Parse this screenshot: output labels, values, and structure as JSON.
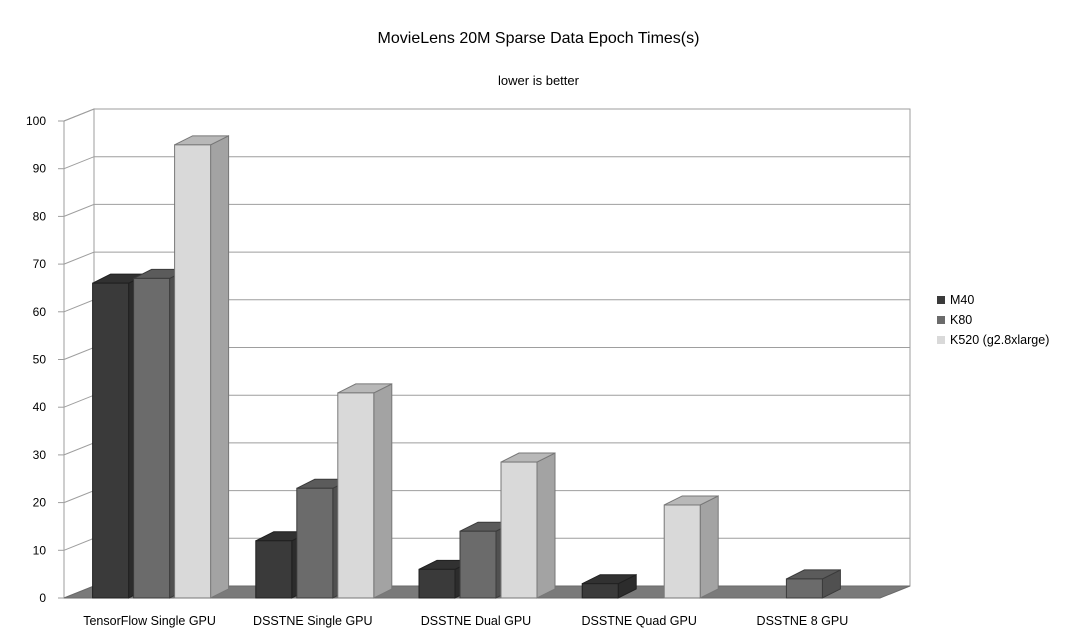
{
  "chart_data": {
    "type": "bar",
    "title": "MovieLens 20M Sparse Data Epoch Times(s)",
    "subtitle": "lower is better",
    "xlabel": "",
    "ylabel": "",
    "ylim": [
      0,
      100
    ],
    "yticks": [
      0,
      10,
      20,
      30,
      40,
      50,
      60,
      70,
      80,
      90,
      100
    ],
    "grid": true,
    "legend_position": "right",
    "categories": [
      "TensorFlow Single GPU",
      "DSSTNE Single GPU",
      "DSSTNE Dual GPU",
      "DSSTNE Quad GPU",
      "DSSTNE 8 GPU"
    ],
    "series": [
      {
        "name": "M40",
        "color": "#3a3a3a",
        "values": [
          66,
          12,
          6,
          3,
          null
        ]
      },
      {
        "name": "K80",
        "color": "#6b6b6b",
        "values": [
          67,
          23,
          14,
          null,
          4
        ]
      },
      {
        "name": "K520 (g2.8xlarge)",
        "color": "#d9d9d9",
        "values": [
          95,
          43,
          28.5,
          19.5,
          null
        ]
      }
    ]
  }
}
